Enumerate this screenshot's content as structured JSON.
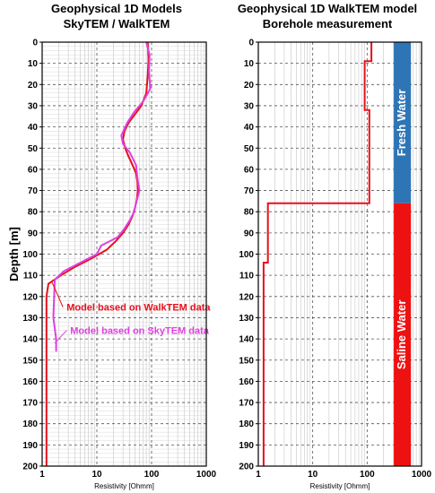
{
  "colors": {
    "walktem": "#e8101c",
    "skytem": "#e040e0",
    "fresh": "#2e75b6",
    "saline": "#ee1111",
    "grid": "#555555"
  },
  "chart_data": [
    {
      "type": "line",
      "title_lines": [
        "Geophysical 1D  Models",
        "SkyTEM / WalkTEM"
      ],
      "xlabel": "Resistivity [Ohmm]",
      "ylabel": "Depth [m]",
      "x_scale": "log",
      "xlim": [
        1,
        1000
      ],
      "ylim": [
        0,
        200
      ],
      "y_inverted": true,
      "xticks": [
        "1",
        "10",
        "100",
        "1000"
      ],
      "yticks": [
        "0",
        "10",
        "20",
        "30",
        "40",
        "50",
        "60",
        "70",
        "80",
        "90",
        "100",
        "110",
        "120",
        "130",
        "140",
        "150",
        "160",
        "170",
        "180",
        "190",
        "200"
      ],
      "grid": true,
      "series": [
        {
          "name": "Model based on WalkTEM data",
          "color_key": "walktem",
          "points": [
            [
              85,
              0
            ],
            [
              88,
              8
            ],
            [
              85,
              16
            ],
            [
              80,
              24
            ],
            [
              65,
              30
            ],
            [
              50,
              34
            ],
            [
              38,
              38
            ],
            [
              32,
              42
            ],
            [
              30,
              46
            ],
            [
              33,
              50
            ],
            [
              38,
              54
            ],
            [
              45,
              58
            ],
            [
              52,
              62
            ],
            [
              55,
              66
            ],
            [
              56,
              70
            ],
            [
              54,
              74
            ],
            [
              50,
              78
            ],
            [
              45,
              82
            ],
            [
              38,
              86
            ],
            [
              30,
              90
            ],
            [
              22,
              94
            ],
            [
              15,
              98
            ],
            [
              8,
              102
            ],
            [
              4,
              106
            ],
            [
              2.2,
              110
            ],
            [
              1.3,
              114
            ],
            [
              1.2,
              120
            ],
            [
              1.2,
              200
            ]
          ]
        },
        {
          "name": "Model based on SkyTEM data",
          "color_key": "skytem",
          "points": [
            [
              80,
              0
            ],
            [
              92,
              6
            ],
            [
              90,
              14
            ],
            [
              95,
              22
            ],
            [
              70,
              28
            ],
            [
              48,
              33
            ],
            [
              36,
              38
            ],
            [
              28,
              44
            ],
            [
              30,
              48
            ],
            [
              40,
              52
            ],
            [
              52,
              58
            ],
            [
              55,
              64
            ],
            [
              60,
              70
            ],
            [
              52,
              76
            ],
            [
              48,
              80
            ],
            [
              40,
              84
            ],
            [
              32,
              88
            ],
            [
              24,
              92
            ],
            [
              12,
              96
            ],
            [
              10,
              100
            ],
            [
              5,
              104
            ],
            [
              2.5,
              108
            ],
            [
              1.7,
              112
            ],
            [
              1.6,
              130
            ],
            [
              1.8,
              140
            ],
            [
              1.8,
              146
            ]
          ]
        }
      ],
      "annotations": [
        {
          "text": "Model based on WalkTEM data",
          "color_key": "walktem",
          "x": 2.4,
          "y": 125
        },
        {
          "text": "Model based on SkyTEM data",
          "color_key": "skytem",
          "x": 2.8,
          "y": 136
        }
      ]
    },
    {
      "type": "line",
      "title_lines": [
        "Geophysical 1D  WalkTEM model",
        "Borehole measurement"
      ],
      "xlabel": "Resistivity [Ohmm]",
      "ylabel": "",
      "x_scale": "log",
      "xlim": [
        1,
        1000
      ],
      "ylim": [
        0,
        200
      ],
      "y_inverted": true,
      "xticks": [
        "1",
        "10",
        "100",
        "1000"
      ],
      "yticks": [
        "0",
        "10",
        "20",
        "30",
        "40",
        "50",
        "60",
        "70",
        "80",
        "90",
        "100",
        "110",
        "120",
        "130",
        "140",
        "150",
        "160",
        "170",
        "180",
        "190",
        "200"
      ],
      "grid": true,
      "series": [
        {
          "name": "WalkTEM model",
          "color_key": "walktem",
          "steps": [
            [
              120,
              0,
              9
            ],
            [
              90,
              9,
              32
            ],
            [
              110,
              32,
              76
            ],
            [
              1.5,
              76,
              104
            ],
            [
              1.25,
              104,
              200
            ]
          ]
        }
      ],
      "borehole": [
        {
          "label": "Fresh Water",
          "top": 0,
          "bottom": 76,
          "color_key": "fresh"
        },
        {
          "label": "Saline Water",
          "top": 76,
          "bottom": 200,
          "color_key": "saline"
        }
      ]
    }
  ]
}
